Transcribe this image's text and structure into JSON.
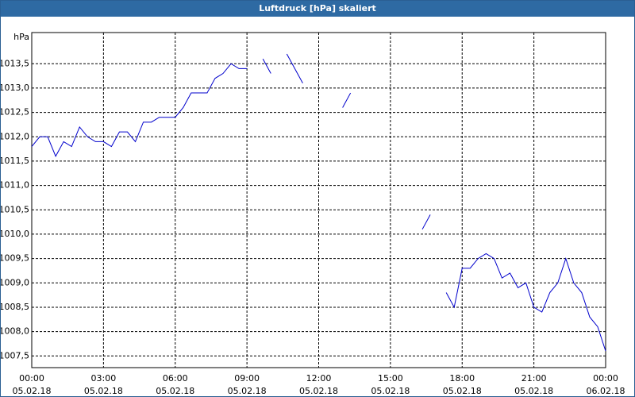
{
  "chart_data": {
    "type": "line",
    "title": "Luftdruck [hPa] skaliert",
    "y_label": "hPa",
    "x": [
      0,
      20,
      40,
      60,
      80,
      100,
      120,
      140,
      160,
      180,
      200,
      220,
      240,
      260,
      280,
      300,
      320,
      340,
      360,
      380,
      400,
      420,
      440,
      460,
      480,
      500,
      520,
      540,
      560,
      580,
      600,
      620,
      640,
      660,
      680,
      700,
      720,
      740,
      760,
      780,
      800,
      820,
      840,
      860,
      880,
      900,
      920,
      940,
      960,
      980,
      1000,
      1020,
      1040,
      1060,
      1080,
      1100,
      1120,
      1140,
      1160,
      1180,
      1200,
      1220,
      1240,
      1260,
      1280,
      1300,
      1320,
      1340,
      1360,
      1380,
      1400,
      1420,
      1440
    ],
    "series": [
      {
        "color": "#0000cc",
        "values": [
          1011.8,
          1012.0,
          1012.0,
          1011.6,
          1011.9,
          1011.8,
          1012.2,
          1012.0,
          1011.9,
          1011.9,
          1011.8,
          1012.1,
          1012.1,
          1011.9,
          1012.3,
          1012.3,
          1012.4,
          1012.4,
          1012.4,
          1012.6,
          1012.9,
          1012.9,
          1012.9,
          1013.2,
          1013.3,
          1013.5,
          1013.4,
          1013.4,
          null,
          1013.6,
          1013.3,
          null,
          1013.7,
          1013.4,
          1013.1,
          null,
          null,
          null,
          null,
          1012.6,
          1012.9,
          null,
          null,
          null,
          null,
          null,
          null,
          null,
          null,
          1010.1,
          1010.4,
          null,
          1008.8,
          1008.5,
          1009.3,
          1009.3,
          1009.5,
          1009.6,
          1009.5,
          1009.1,
          1009.2,
          1008.9,
          1009.0,
          1008.5,
          1008.4,
          1008.8,
          1009.0,
          1009.5,
          1009.0,
          1008.8,
          1008.3,
          1008.1,
          1007.6
        ]
      }
    ],
    "xlim": [
      0,
      1440
    ],
    "xticks": [
      {
        "value": 0,
        "label": "00:00\n05.02.18"
      },
      {
        "value": 180,
        "label": "03:00\n05.02.18"
      },
      {
        "value": 360,
        "label": "06:00\n05.02.18"
      },
      {
        "value": 540,
        "label": "09:00\n05.02.18"
      },
      {
        "value": 720,
        "label": "12:00\n05.02.18"
      },
      {
        "value": 900,
        "label": "15:00\n05.02.18"
      },
      {
        "value": 1080,
        "label": "18:00\n05.02.18"
      },
      {
        "value": 1260,
        "label": "21:00\n05.02.18"
      },
      {
        "value": 1440,
        "label": "00:00\n06.02.18"
      }
    ],
    "ylim": [
      1007.26,
      1014.14
    ],
    "yticks": [
      {
        "value": 1007.5,
        "label": "1007,5"
      },
      {
        "value": 1008,
        "label": "1008,0"
      },
      {
        "value": 1008.5,
        "label": "1008,5"
      },
      {
        "value": 1009,
        "label": "1009,0"
      },
      {
        "value": 1009.5,
        "label": "1009,5"
      },
      {
        "value": 1010,
        "label": "1010,0"
      },
      {
        "value": 1010.5,
        "label": "1010,5"
      },
      {
        "value": 1011,
        "label": "1011,0"
      },
      {
        "value": 1011.5,
        "label": "1011,5"
      },
      {
        "value": 1012,
        "label": "1012,0"
      },
      {
        "value": 1012.5,
        "label": "1012,5"
      },
      {
        "value": 1013,
        "label": "1013,0"
      },
      {
        "value": 1013.5,
        "label": "1013,5"
      }
    ],
    "grid": true
  }
}
